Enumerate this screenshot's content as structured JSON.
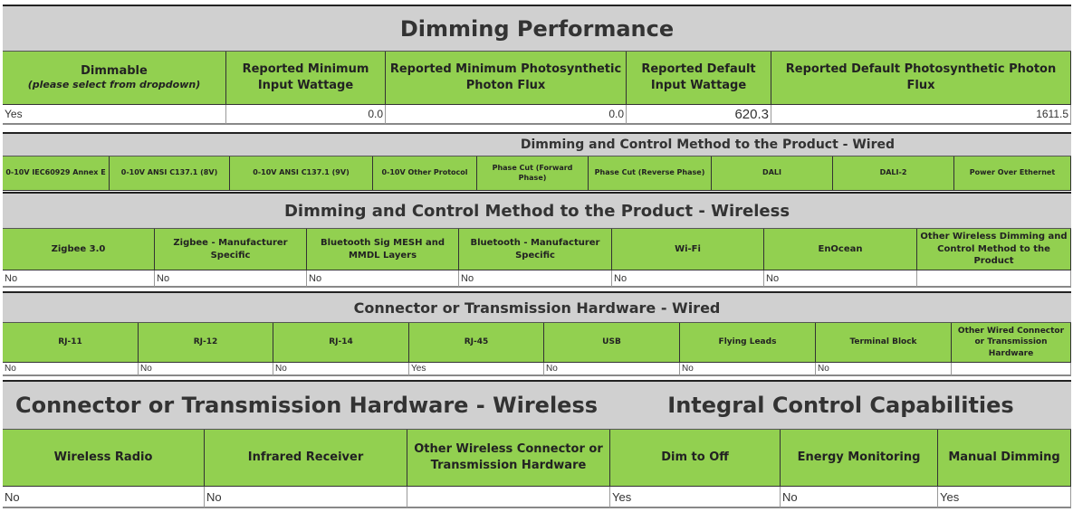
{
  "colors": {
    "header_green": "#92D050",
    "title_gray": "#D0D0D0"
  },
  "dimming_performance": {
    "title": "Dimming Performance",
    "headers": [
      "Dimmable",
      "Reported Minimum Input Wattage",
      "Reported Minimum Photosynthetic Photon Flux",
      "Reported Default Input Wattage",
      "Reported Default Photosynthetic Photon Flux"
    ],
    "dimmable_note": "(please select from dropdown)",
    "values": [
      "Yes",
      "0.0",
      "0.0",
      "620.3",
      "1611.5"
    ]
  },
  "wired_methods": {
    "title": "Dimming and Control Method to the Product - Wired",
    "headers": [
      "0-10V IEC60929 Annex E",
      "0-10V ANSI C137.1 (8V)",
      "0-10V ANSI C137.1 (9V)",
      "0-10V Other Protocol",
      "Phase Cut (Forward Phase)",
      "Phase Cut (Reverse Phase)",
      "DALI",
      "DALI-2",
      "Power Over Ethernet"
    ]
  },
  "wireless_methods": {
    "title": "Dimming and Control Method to the Product - Wireless",
    "headers": [
      "Zigbee 3.0",
      "Zigbee - Manufacturer Specific",
      "Bluetooth Sig MESH and MMDL Layers",
      "Bluetooth - Manufacturer Specific",
      "Wi-Fi",
      "EnOcean",
      "Other Wireless Dimming and Control Method to the Product"
    ],
    "values": [
      "No",
      "No",
      "No",
      "No",
      "No",
      "No",
      ""
    ]
  },
  "wired_hardware": {
    "title": "Connector or Transmission Hardware - Wired",
    "headers": [
      "RJ-11",
      "RJ-12",
      "RJ-14",
      "RJ-45",
      "USB",
      "Flying Leads",
      "Terminal Block",
      "Other Wired Connector or Transmission Hardware"
    ],
    "values": [
      "No",
      "No",
      "No",
      "Yes",
      "No",
      "No",
      "No",
      ""
    ]
  },
  "wireless_hardware": {
    "title": "Connector or Transmission Hardware - Wireless",
    "headers": [
      "Wireless Radio",
      "Infrared Receiver",
      "Other Wireless Connector or Transmission Hardware"
    ],
    "values": [
      "No",
      "No",
      ""
    ]
  },
  "integral_control": {
    "title": "Integral Control Capabilities",
    "headers": [
      "Dim to Off",
      "Energy Monitoring",
      "Manual Dimming"
    ],
    "values": [
      "Yes",
      "No",
      "Yes"
    ]
  }
}
